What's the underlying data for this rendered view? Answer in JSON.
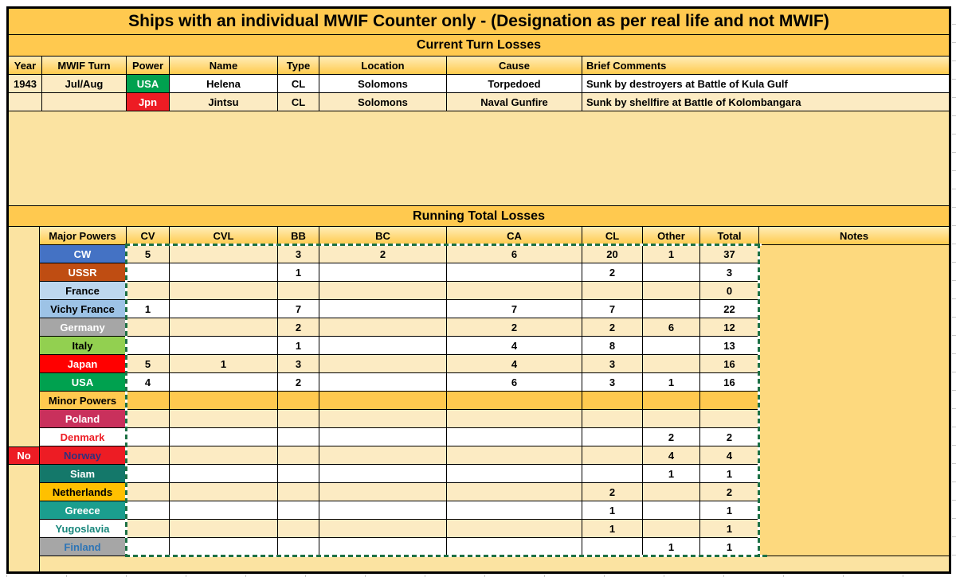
{
  "title": "Ships with an individual MWIF Counter only - (Designation as per real life and not MWIF)",
  "colors": {
    "gold_band": "#FFC94F",
    "pale_gold": "#FBE3A1",
    "cream_row": "#FCEBC3",
    "notes_fill": "#FDD97E",
    "selection_green": "#1E7145"
  },
  "current_turn": {
    "section_title": "Current Turn Losses",
    "headers": {
      "year": "Year",
      "turn": "MWIF Turn",
      "power": "Power",
      "name": "Name",
      "type": "Type",
      "location": "Location",
      "cause": "Cause",
      "comments": "Brief Comments"
    },
    "rows": [
      {
        "year": "1943",
        "turn": "Jul/Aug",
        "year_bg": "#FCEBC3",
        "power": "USA",
        "power_bg": "#00A14F",
        "power_color": "#FFFFFF",
        "name": "Helena",
        "type": "CL",
        "location": "Solomons",
        "cause": "Torpedoed",
        "comments": "Sunk by destroyers at Battle of Kula Gulf",
        "band": "#FFFFFF"
      },
      {
        "year": "",
        "turn": "",
        "year_bg": "#FCEBC3",
        "power": "Jpn",
        "power_bg": "#ED1C24",
        "power_color": "#FFFFFF",
        "name": "Jintsu",
        "type": "CL",
        "location": "Solomons",
        "cause": "Naval Gunfire",
        "comments": "Sunk by shellfire at Battle of Kolombangara",
        "band": "#FCEBC3"
      }
    ]
  },
  "running_total": {
    "section_title": "Running Total Losses",
    "headers": {
      "label": "Major Powers",
      "cv": "CV",
      "cvl": "CVL",
      "bb": "BB",
      "bc": "BC",
      "ca": "CA",
      "cl": "CL",
      "other": "Other",
      "total": "Total",
      "notes": "Notes"
    },
    "no_marker": {
      "label": "No",
      "bg": "#ED1C24",
      "color": "#FFFFFF"
    },
    "rows": [
      {
        "label": "CW",
        "label_bg": "#4472C4",
        "label_color": "#FFFFFF",
        "band": "#FCEBC3",
        "cv": "5",
        "cvl": "",
        "bb": "3",
        "bc": "2",
        "ca": "6",
        "cl": "20",
        "other": "1",
        "total": "37"
      },
      {
        "label": "USSR",
        "label_bg": "#BF4D12",
        "label_color": "#FFFFFF",
        "band": "#FFFFFF",
        "cv": "",
        "cvl": "",
        "bb": "1",
        "bc": "",
        "ca": "",
        "cl": "2",
        "other": "",
        "total": "3"
      },
      {
        "label": "France",
        "label_bg": "#BDD7EE",
        "label_color": "#000000",
        "band": "#FCEBC3",
        "cv": "",
        "cvl": "",
        "bb": "",
        "bc": "",
        "ca": "",
        "cl": "",
        "other": "",
        "total": "0"
      },
      {
        "label": "Vichy France",
        "label_bg": "#9DC3E6",
        "label_color": "#000000",
        "band": "#FFFFFF",
        "cv": "1",
        "cvl": "",
        "bb": "7",
        "bc": "",
        "ca": "7",
        "cl": "7",
        "other": "",
        "total": "22"
      },
      {
        "label": "Germany",
        "label_bg": "#A6A6A6",
        "label_color": "#FFFFFF",
        "band": "#FCEBC3",
        "cv": "",
        "cvl": "",
        "bb": "2",
        "bc": "",
        "ca": "2",
        "cl": "2",
        "other": "6",
        "total": "12"
      },
      {
        "label": "Italy",
        "label_bg": "#92D050",
        "label_color": "#000000",
        "band": "#FFFFFF",
        "cv": "",
        "cvl": "",
        "bb": "1",
        "bc": "",
        "ca": "4",
        "cl": "8",
        "other": "",
        "total": "13"
      },
      {
        "label": "Japan",
        "label_bg": "#FF0000",
        "label_color": "#FFFFFF",
        "band": "#FCEBC3",
        "cv": "5",
        "cvl": "1",
        "bb": "3",
        "bc": "",
        "ca": "4",
        "cl": "3",
        "other": "",
        "total": "16"
      },
      {
        "label": "USA",
        "label_bg": "#00A14F",
        "label_color": "#FFFFFF",
        "band": "#FFFFFF",
        "cv": "4",
        "cvl": "",
        "bb": "2",
        "bc": "",
        "ca": "6",
        "cl": "3",
        "other": "1",
        "total": "16"
      },
      {
        "label": "Minor Powers",
        "label_bg": "#FFC94F",
        "label_color": "#000000",
        "band": "#FFC94F",
        "cv": "",
        "cvl": "",
        "bb": "",
        "bc": "",
        "ca": "",
        "cl": "",
        "other": "",
        "total": ""
      },
      {
        "label": "Poland",
        "label_bg": "#C9305C",
        "label_color": "#FFFFFF",
        "band": "#FCEBC3",
        "cv": "",
        "cvl": "",
        "bb": "",
        "bc": "",
        "ca": "",
        "cl": "",
        "other": "",
        "total": ""
      },
      {
        "label": "Denmark",
        "label_bg": "#FFFFFF",
        "label_color": "#ED1C24",
        "band": "#FFFFFF",
        "cv": "",
        "cvl": "",
        "bb": "",
        "bc": "",
        "ca": "",
        "cl": "",
        "other": "2",
        "total": "2"
      },
      {
        "label": "Norway",
        "label_bg": "#ED1C24",
        "label_color": "#31317D",
        "band": "#FCEBC3",
        "cv": "",
        "cvl": "",
        "bb": "",
        "bc": "",
        "ca": "",
        "cl": "",
        "other": "4",
        "total": "4"
      },
      {
        "label": "Siam",
        "label_bg": "#14786A",
        "label_color": "#FFFFFF",
        "band": "#FFFFFF",
        "cv": "",
        "cvl": "",
        "bb": "",
        "bc": "",
        "ca": "",
        "cl": "",
        "other": "1",
        "total": "1"
      },
      {
        "label": "Netherlands",
        "label_bg": "#FFC000",
        "label_color": "#000000",
        "band": "#FCEBC3",
        "cv": "",
        "cvl": "",
        "bb": "",
        "bc": "",
        "ca": "",
        "cl": "2",
        "other": "",
        "total": "2"
      },
      {
        "label": "Greece",
        "label_bg": "#1B9E8E",
        "label_color": "#FFFFFF",
        "band": "#FFFFFF",
        "cv": "",
        "cvl": "",
        "bb": "",
        "bc": "",
        "ca": "",
        "cl": "1",
        "other": "",
        "total": "1"
      },
      {
        "label": "Yugoslavia",
        "label_bg": "#FFFFFF",
        "label_color": "#17867B",
        "band": "#FCEBC3",
        "cv": "",
        "cvl": "",
        "bb": "",
        "bc": "",
        "ca": "",
        "cl": "1",
        "other": "",
        "total": "1"
      },
      {
        "label": "Finland",
        "label_bg": "#A6A6A6",
        "label_color": "#2E75B6",
        "band": "#FFFFFF",
        "cv": "",
        "cvl": "",
        "bb": "",
        "bc": "",
        "ca": "",
        "cl": "",
        "other": "1",
        "total": "1"
      }
    ]
  }
}
